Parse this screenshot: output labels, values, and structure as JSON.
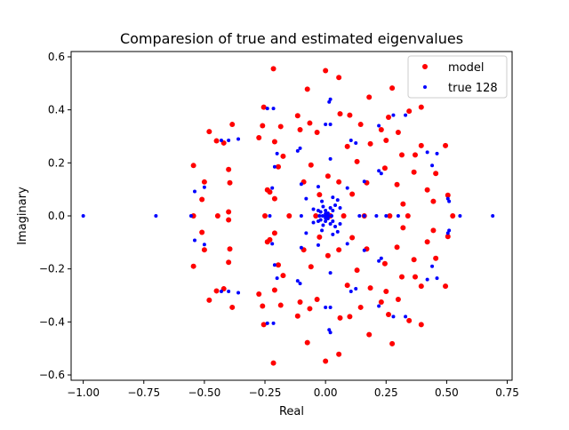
{
  "colors": {
    "model": "#ff0000",
    "true": "#0000ff",
    "axes": "#000000",
    "legend_border": "#cccccc"
  },
  "chart_data": {
    "type": "scatter",
    "title": "Comparesion of true and estimated eigenvalues",
    "xlabel": "Real",
    "ylabel": "Imaginary",
    "xlim": [
      -1.05,
      0.77
    ],
    "ylim": [
      -0.62,
      0.62
    ],
    "xticks": [
      -1.0,
      -0.75,
      -0.5,
      -0.25,
      0.0,
      0.25,
      0.5,
      0.75
    ],
    "xtick_labels": [
      "−1.00",
      "−0.75",
      "−0.50",
      "−0.25",
      "0.00",
      "0.25",
      "0.50",
      "0.75"
    ],
    "yticks": [
      -0.6,
      -0.4,
      -0.2,
      0.0,
      0.2,
      0.4,
      0.6
    ],
    "ytick_labels": [
      "−0.6",
      "−0.4",
      "−0.2",
      "0.0",
      "0.2",
      "0.4",
      "0.6"
    ],
    "grid": false,
    "legend_position": "top-right",
    "series": [
      {
        "name": "model",
        "color": "#ff0000",
        "marker_size": "large",
        "points": [
          [
            -0.215,
            0.555
          ],
          [
            0.0,
            0.548
          ],
          [
            0.055,
            0.522
          ],
          [
            -0.075,
            0.478
          ],
          [
            0.275,
            0.482
          ],
          [
            -0.255,
            0.41
          ],
          [
            0.18,
            0.448
          ],
          [
            0.395,
            0.41
          ],
          [
            -0.065,
            0.35
          ],
          [
            0.06,
            0.385
          ],
          [
            0.1,
            0.38
          ],
          [
            0.345,
            0.395
          ],
          [
            0.26,
            0.372
          ],
          [
            -0.48,
            0.318
          ],
          [
            -0.385,
            0.345
          ],
          [
            -0.185,
            0.337
          ],
          [
            -0.115,
            0.378
          ],
          [
            0.145,
            0.345
          ],
          [
            0.23,
            0.325
          ],
          [
            -0.26,
            0.34
          ],
          [
            -0.42,
            0.275
          ],
          [
            -0.275,
            0.295
          ],
          [
            -0.21,
            0.28
          ],
          [
            -0.105,
            0.325
          ],
          [
            -0.035,
            0.315
          ],
          [
            0.09,
            0.262
          ],
          [
            0.185,
            0.272
          ],
          [
            0.25,
            0.285
          ],
          [
            0.3,
            0.315
          ],
          [
            0.395,
            0.265
          ],
          [
            0.495,
            0.265
          ],
          [
            -0.45,
            0.283
          ],
          [
            -0.175,
            0.225
          ],
          [
            0.315,
            0.23
          ],
          [
            0.37,
            0.23
          ],
          [
            -0.545,
            0.19
          ],
          [
            -0.4,
            0.175
          ],
          [
            -0.195,
            0.185
          ],
          [
            -0.06,
            0.192
          ],
          [
            0.13,
            0.205
          ],
          [
            0.245,
            0.18
          ],
          [
            0.365,
            0.165
          ],
          [
            0.455,
            0.16
          ],
          [
            0.01,
            0.15
          ],
          [
            0.055,
            0.128
          ],
          [
            0.17,
            0.125
          ],
          [
            -0.5,
            0.128
          ],
          [
            -0.395,
            0.125
          ],
          [
            -0.09,
            0.128
          ],
          [
            0.295,
            0.118
          ],
          [
            0.42,
            0.098
          ],
          [
            -0.24,
            0.098
          ],
          [
            -0.23,
            0.09
          ],
          [
            -0.21,
            0.065
          ],
          [
            -0.025,
            0.08
          ],
          [
            0.11,
            0.082
          ],
          [
            0.505,
            0.078
          ],
          [
            -0.51,
            0.062
          ],
          [
            -0.4,
            0.015
          ],
          [
            0.32,
            0.045
          ],
          [
            0.445,
            0.055
          ],
          [
            -0.545,
            0.0
          ],
          [
            -0.445,
            0.0
          ],
          [
            -0.25,
            0.0
          ],
          [
            -0.15,
            0.0
          ],
          [
            -0.04,
            0.0
          ],
          [
            0.02,
            0.0
          ],
          [
            0.075,
            0.0
          ],
          [
            0.16,
            0.0
          ],
          [
            0.265,
            0.0
          ],
          [
            0.34,
            0.0
          ],
          [
            0.525,
            0.0
          ],
          [
            -0.51,
            -0.062
          ],
          [
            -0.4,
            -0.015
          ],
          [
            0.32,
            -0.045
          ],
          [
            0.445,
            -0.055
          ],
          [
            -0.24,
            -0.098
          ],
          [
            -0.23,
            -0.09
          ],
          [
            -0.21,
            -0.065
          ],
          [
            -0.025,
            -0.08
          ],
          [
            0.11,
            -0.082
          ],
          [
            0.505,
            -0.078
          ],
          [
            -0.5,
            -0.128
          ],
          [
            -0.395,
            -0.125
          ],
          [
            -0.09,
            -0.128
          ],
          [
            0.295,
            -0.118
          ],
          [
            0.42,
            -0.098
          ],
          [
            0.01,
            -0.15
          ],
          [
            0.055,
            -0.128
          ],
          [
            0.17,
            -0.125
          ],
          [
            -0.545,
            -0.19
          ],
          [
            -0.4,
            -0.175
          ],
          [
            -0.195,
            -0.185
          ],
          [
            -0.06,
            -0.192
          ],
          [
            0.13,
            -0.205
          ],
          [
            0.245,
            -0.18
          ],
          [
            0.365,
            -0.165
          ],
          [
            0.455,
            -0.16
          ],
          [
            -0.175,
            -0.225
          ],
          [
            0.315,
            -0.23
          ],
          [
            0.37,
            -0.23
          ],
          [
            -0.42,
            -0.275
          ],
          [
            -0.275,
            -0.295
          ],
          [
            -0.21,
            -0.28
          ],
          [
            -0.105,
            -0.325
          ],
          [
            -0.035,
            -0.315
          ],
          [
            0.09,
            -0.262
          ],
          [
            0.185,
            -0.272
          ],
          [
            0.25,
            -0.285
          ],
          [
            0.3,
            -0.315
          ],
          [
            0.395,
            -0.265
          ],
          [
            0.495,
            -0.265
          ],
          [
            -0.45,
            -0.283
          ],
          [
            -0.48,
            -0.318
          ],
          [
            -0.385,
            -0.345
          ],
          [
            -0.185,
            -0.337
          ],
          [
            -0.115,
            -0.378
          ],
          [
            0.145,
            -0.345
          ],
          [
            0.23,
            -0.325
          ],
          [
            -0.26,
            -0.34
          ],
          [
            -0.065,
            -0.35
          ],
          [
            0.06,
            -0.385
          ],
          [
            0.1,
            -0.38
          ],
          [
            0.345,
            -0.395
          ],
          [
            0.26,
            -0.372
          ],
          [
            -0.255,
            -0.41
          ],
          [
            0.18,
            -0.448
          ],
          [
            0.395,
            -0.41
          ],
          [
            -0.075,
            -0.478
          ],
          [
            0.275,
            -0.482
          ],
          [
            -0.215,
            -0.555
          ],
          [
            0.0,
            -0.548
          ],
          [
            0.055,
            -0.522
          ]
        ]
      },
      {
        "name": "true 128",
        "color": "#0000ff",
        "marker_size": "small",
        "points": [
          [
            -1.0,
            0.0
          ],
          [
            -0.7,
            0.0
          ],
          [
            0.69,
            0.0
          ],
          [
            0.555,
            0.0
          ],
          [
            -0.555,
            0.0
          ],
          [
            -0.24,
            0.405
          ],
          [
            -0.215,
            0.405
          ],
          [
            0.02,
            0.44
          ],
          [
            0.015,
            0.43
          ],
          [
            0.28,
            0.38
          ],
          [
            0.33,
            0.38
          ],
          [
            -0.0,
            0.345
          ],
          [
            0.22,
            0.34
          ],
          [
            -0.36,
            0.29
          ],
          [
            -0.43,
            0.285
          ],
          [
            -0.4,
            0.285
          ],
          [
            0.02,
            0.345
          ],
          [
            -0.105,
            0.255
          ],
          [
            -0.115,
            0.245
          ],
          [
            0.105,
            0.285
          ],
          [
            0.125,
            0.275
          ],
          [
            -0.2,
            0.235
          ],
          [
            0.42,
            0.24
          ],
          [
            0.46,
            0.235
          ],
          [
            -0.21,
            0.185
          ],
          [
            0.02,
            0.215
          ],
          [
            0.22,
            0.17
          ],
          [
            0.23,
            0.16
          ],
          [
            0.44,
            0.19
          ],
          [
            -0.54,
            0.092
          ],
          [
            -0.5,
            0.108
          ],
          [
            -0.22,
            0.105
          ],
          [
            -0.1,
            0.12
          ],
          [
            -0.08,
            0.065
          ],
          [
            -0.03,
            0.11
          ],
          [
            0.09,
            0.105
          ],
          [
            0.16,
            0.13
          ],
          [
            0.505,
            0.065
          ],
          [
            0.51,
            0.055
          ],
          [
            -0.05,
            0.025
          ],
          [
            -0.03,
            0.02
          ],
          [
            -0.02,
            0.015
          ],
          [
            -0.01,
            0.035
          ],
          [
            0.0,
            0.02
          ],
          [
            0.01,
            0.01
          ],
          [
            0.02,
            0.03
          ],
          [
            0.03,
            0.02
          ],
          [
            0.04,
            0.04
          ],
          [
            0.06,
            0.03
          ],
          [
            0.05,
            0.06
          ],
          [
            0.03,
            0.07
          ],
          [
            -0.015,
            0.055
          ],
          [
            -0.05,
            -0.025
          ],
          [
            -0.03,
            -0.02
          ],
          [
            -0.02,
            -0.015
          ],
          [
            -0.01,
            -0.035
          ],
          [
            0.0,
            -0.02
          ],
          [
            0.01,
            -0.01
          ],
          [
            0.02,
            -0.03
          ],
          [
            0.03,
            -0.02
          ],
          [
            0.04,
            -0.04
          ],
          [
            0.06,
            -0.03
          ],
          [
            0.05,
            -0.06
          ],
          [
            0.03,
            -0.07
          ],
          [
            -0.015,
            -0.055
          ],
          [
            -0.025,
            0.0
          ],
          [
            -0.012,
            0.0
          ],
          [
            0.0,
            0.0
          ],
          [
            0.012,
            0.0
          ],
          [
            0.025,
            0.0
          ],
          [
            0.0,
            0.008
          ],
          [
            0.0,
            -0.008
          ],
          [
            0.14,
            0.0
          ],
          [
            0.16,
            0.0
          ],
          [
            0.25,
            0.0
          ],
          [
            0.3,
            0.0
          ],
          [
            -0.23,
            0.0
          ],
          [
            -0.1,
            0.0
          ],
          [
            0.21,
            0.0
          ],
          [
            -0.54,
            -0.092
          ],
          [
            -0.5,
            -0.108
          ],
          [
            -0.22,
            -0.105
          ],
          [
            -0.1,
            -0.12
          ],
          [
            -0.08,
            -0.065
          ],
          [
            -0.03,
            -0.11
          ],
          [
            0.09,
            -0.105
          ],
          [
            0.16,
            -0.13
          ],
          [
            0.505,
            -0.065
          ],
          [
            0.51,
            -0.055
          ],
          [
            -0.21,
            -0.185
          ],
          [
            0.02,
            -0.215
          ],
          [
            0.22,
            -0.17
          ],
          [
            0.23,
            -0.16
          ],
          [
            0.44,
            -0.19
          ],
          [
            -0.105,
            -0.255
          ],
          [
            -0.115,
            -0.245
          ],
          [
            0.105,
            -0.285
          ],
          [
            0.125,
            -0.275
          ],
          [
            -0.2,
            -0.235
          ],
          [
            0.42,
            -0.24
          ],
          [
            0.46,
            -0.235
          ],
          [
            -0.0,
            -0.345
          ],
          [
            0.22,
            -0.34
          ],
          [
            -0.36,
            -0.29
          ],
          [
            -0.43,
            -0.285
          ],
          [
            -0.4,
            -0.285
          ],
          [
            0.02,
            -0.345
          ],
          [
            -0.24,
            -0.405
          ],
          [
            -0.215,
            -0.405
          ],
          [
            0.02,
            -0.44
          ],
          [
            0.015,
            -0.43
          ],
          [
            0.28,
            -0.38
          ],
          [
            0.33,
            -0.38
          ]
        ]
      }
    ]
  }
}
